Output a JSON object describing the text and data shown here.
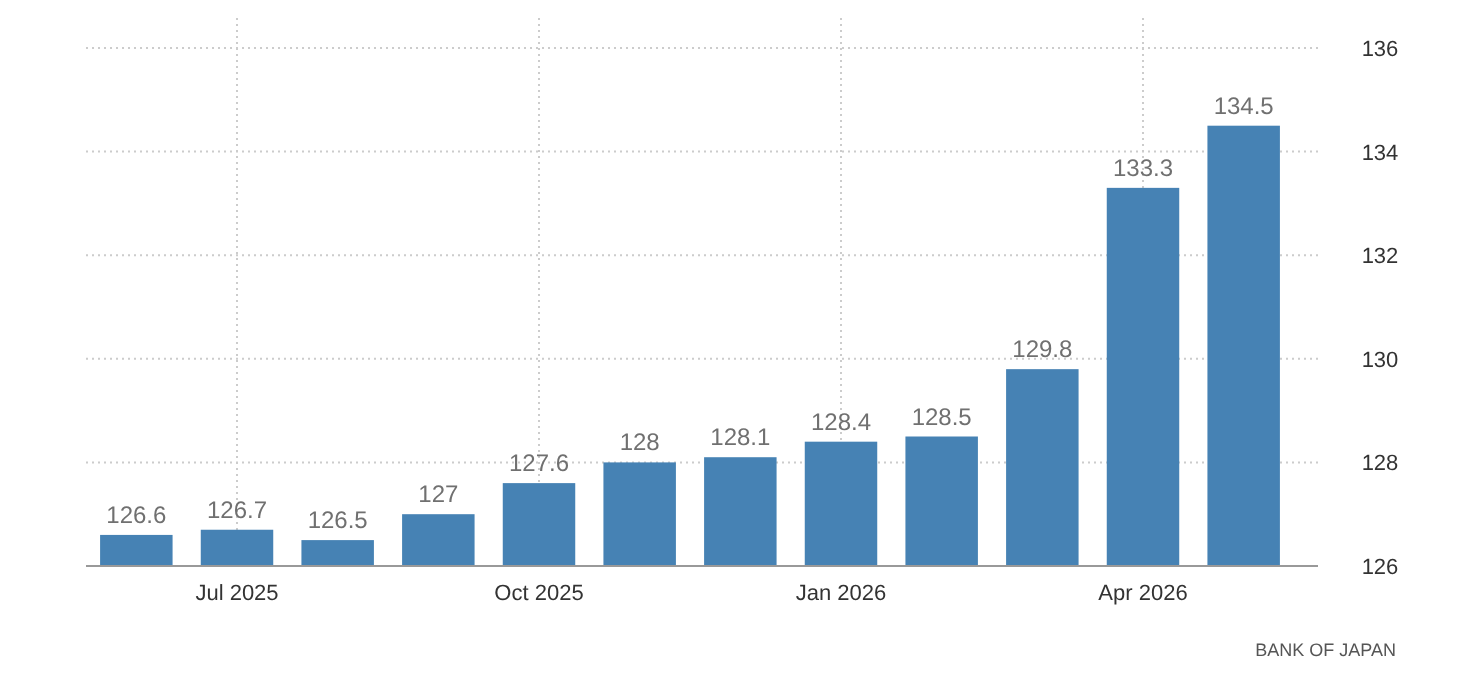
{
  "chart_data": {
    "type": "bar",
    "categories": [
      null,
      "Jul 2025",
      null,
      null,
      "Oct 2025",
      null,
      null,
      "Jan 2026",
      null,
      null,
      "Apr 2026",
      null
    ],
    "values": [
      126.6,
      126.7,
      126.5,
      127,
      127.6,
      128,
      128.1,
      128.4,
      128.5,
      129.8,
      133.3,
      134.5
    ],
    "color": "#4682b4",
    "ylim": [
      126,
      136
    ],
    "yticks": [
      126,
      128,
      130,
      132,
      134,
      136
    ],
    "grid": true,
    "data_labels": true,
    "annotations": [
      "BANK OF JAPAN"
    ]
  }
}
